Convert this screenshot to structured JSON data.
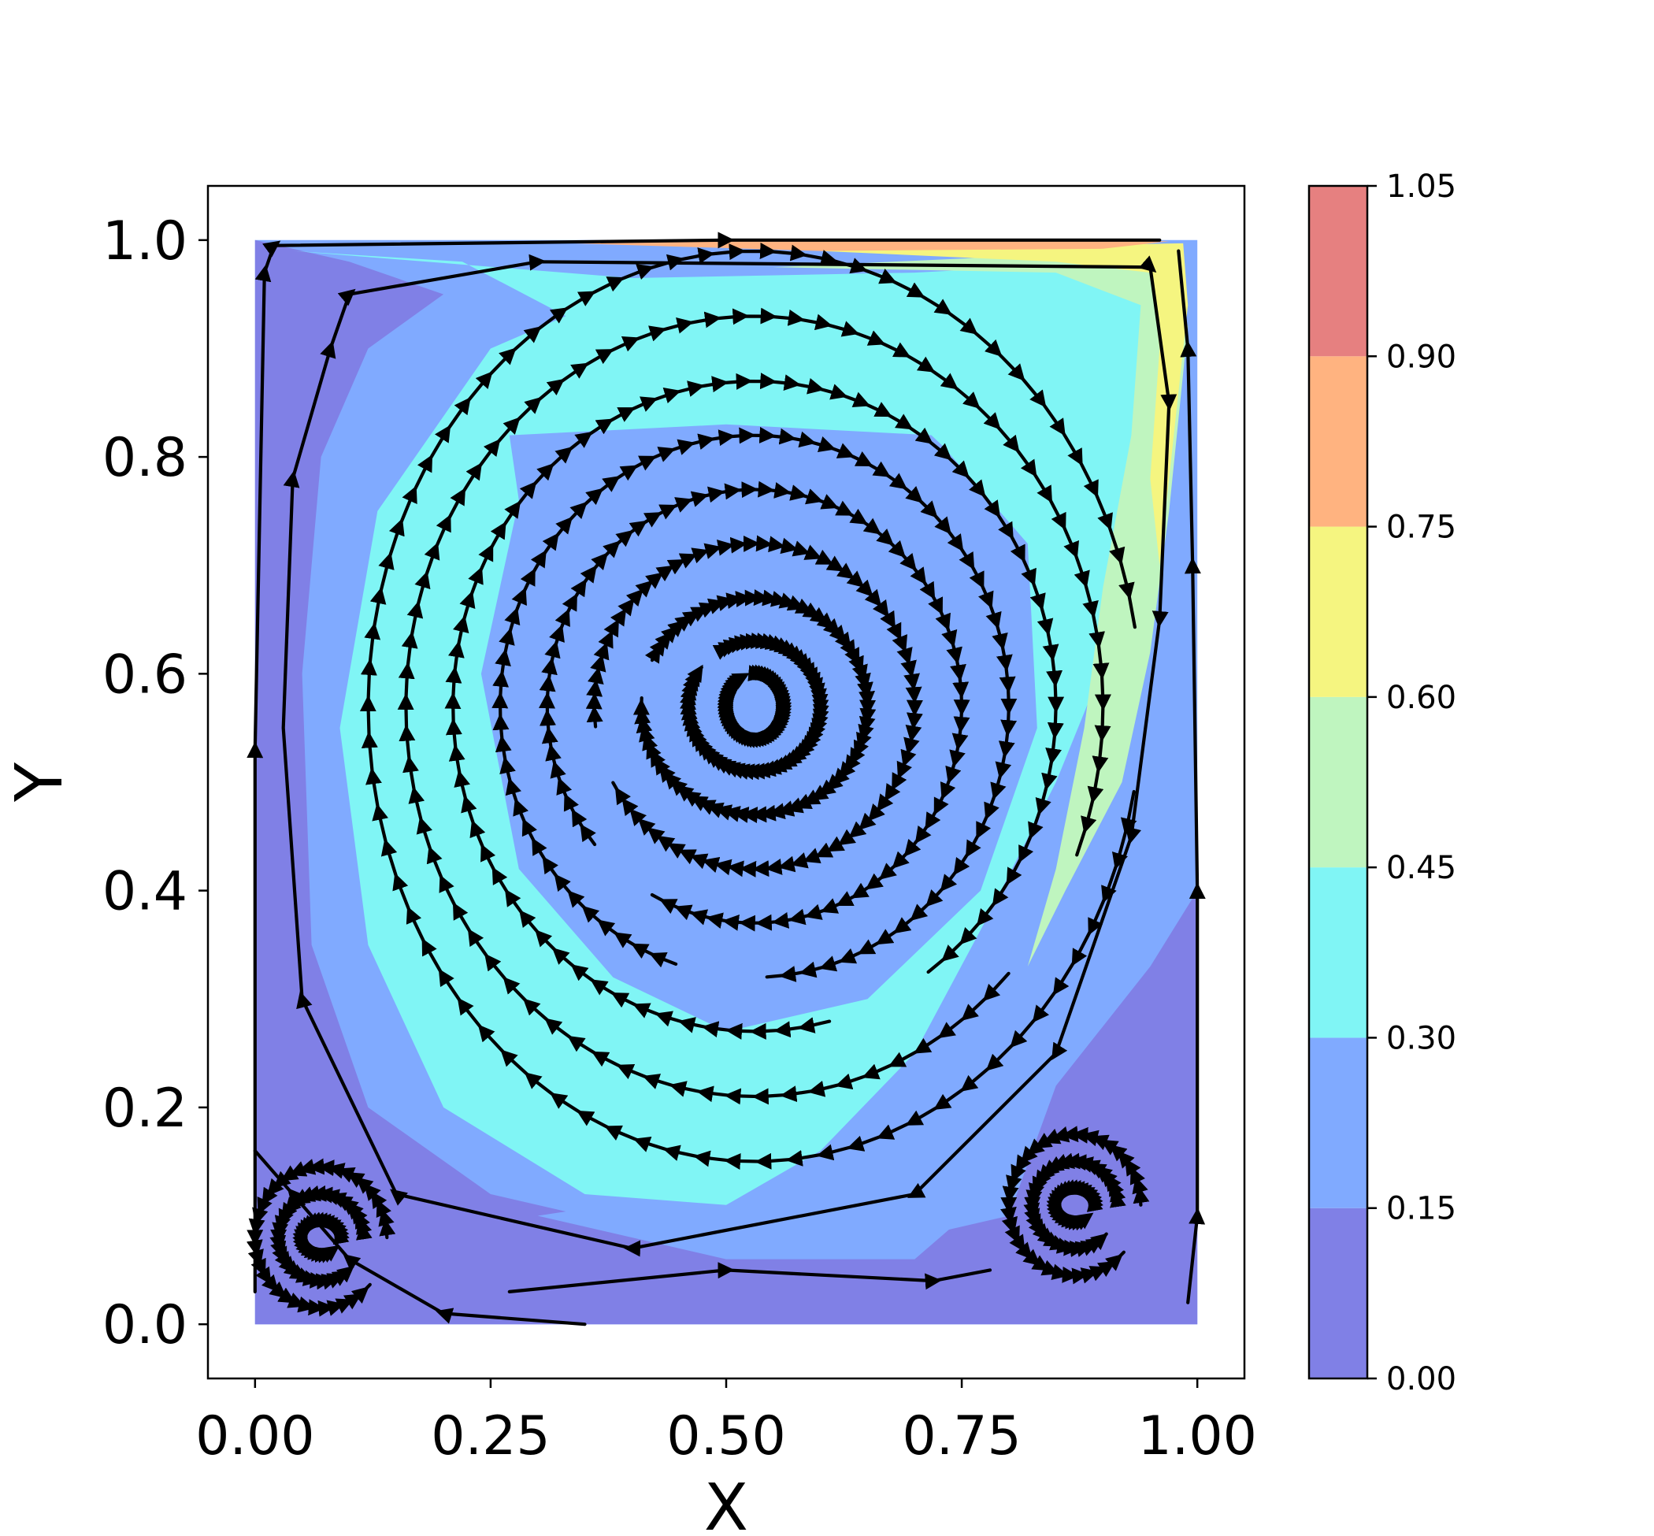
{
  "chart_data": {
    "type": "contourf+streamplot",
    "xlabel": "X",
    "ylabel": "Y",
    "xlim": [
      -0.05,
      1.05
    ],
    "ylim": [
      -0.05,
      1.05
    ],
    "xticks": [
      {
        "value": 0.0,
        "label": "0.00"
      },
      {
        "value": 0.25,
        "label": "0.25"
      },
      {
        "value": 0.5,
        "label": "0.50"
      },
      {
        "value": 0.75,
        "label": "0.75"
      },
      {
        "value": 1.0,
        "label": "1.00"
      }
    ],
    "yticks": [
      {
        "value": 0.0,
        "label": "0.0"
      },
      {
        "value": 0.2,
        "label": "0.2"
      },
      {
        "value": 0.4,
        "label": "0.4"
      },
      {
        "value": 0.6,
        "label": "0.6"
      },
      {
        "value": 0.8,
        "label": "0.8"
      },
      {
        "value": 1.0,
        "label": "1.0"
      }
    ],
    "colorbar": {
      "levels": [
        0.0,
        0.15,
        0.3,
        0.45,
        0.6,
        0.75,
        0.9,
        1.05
      ],
      "labels": [
        "0.00",
        "0.15",
        "0.30",
        "0.45",
        "0.60",
        "0.75",
        "0.90",
        "1.05"
      ],
      "colors": [
        "#8080e6",
        "#80aaff",
        "#80f5f5",
        "#bff5bf",
        "#f5f580",
        "#ffb380",
        "#e68080"
      ]
    },
    "primary_vortex_center": [
      0.53,
      0.57
    ],
    "secondary_vortices": [
      [
        0.07,
        0.08
      ],
      [
        0.87,
        0.11
      ]
    ],
    "lid_velocity_direction": "+x at y=1.0"
  }
}
